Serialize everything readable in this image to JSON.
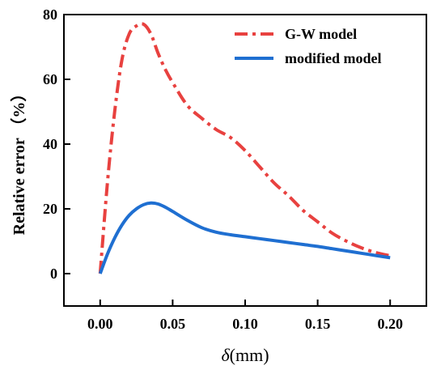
{
  "chart_data": {
    "type": "line",
    "xlabel_symbol": "δ",
    "xlabel_unit": "(mm)",
    "ylabel": "Relative error （%）",
    "xlim": [
      -0.025,
      0.225
    ],
    "ylim": [
      -10,
      80
    ],
    "xticks": [
      "0.00",
      "0.05",
      "0.10",
      "0.15",
      "0.20"
    ],
    "xtick_values": [
      0,
      0.05,
      0.1,
      0.15,
      0.2
    ],
    "yticks": [
      "0",
      "20",
      "40",
      "60",
      "80"
    ],
    "ytick_values": [
      0,
      20,
      40,
      60,
      80
    ],
    "grid": false,
    "legend_position": "top-right",
    "series": [
      {
        "name": "G-W model",
        "color": "#e8413f",
        "style": "dash-dot",
        "x": [
          0,
          0.005,
          0.01,
          0.015,
          0.02,
          0.025,
          0.03,
          0.035,
          0.04,
          0.045,
          0.05,
          0.06,
          0.07,
          0.08,
          0.09,
          0.1,
          0.11,
          0.12,
          0.13,
          0.14,
          0.15,
          0.16,
          0.17,
          0.18,
          0.19,
          0.2
        ],
        "y": [
          0,
          28,
          50,
          66,
          74,
          76.5,
          77,
          74,
          68,
          63,
          59,
          52,
          48,
          44.5,
          42,
          38,
          33,
          28,
          24,
          19.5,
          16,
          12.5,
          10,
          8,
          6.5,
          5.5
        ]
      },
      {
        "name": "modified model",
        "color": "#1f6fd1",
        "style": "solid",
        "x": [
          0,
          0.005,
          0.01,
          0.015,
          0.02,
          0.025,
          0.03,
          0.035,
          0.04,
          0.045,
          0.05,
          0.06,
          0.07,
          0.08,
          0.09,
          0.1,
          0.11,
          0.12,
          0.13,
          0.14,
          0.15,
          0.16,
          0.17,
          0.18,
          0.19,
          0.2
        ],
        "y": [
          0,
          6,
          11,
          15,
          18,
          20,
          21.3,
          21.8,
          21.5,
          20.5,
          19.2,
          16.5,
          14.2,
          12.8,
          12,
          11.4,
          10.8,
          10.2,
          9.6,
          9,
          8.4,
          7.7,
          7,
          6.3,
          5.6,
          4.9
        ]
      }
    ]
  }
}
